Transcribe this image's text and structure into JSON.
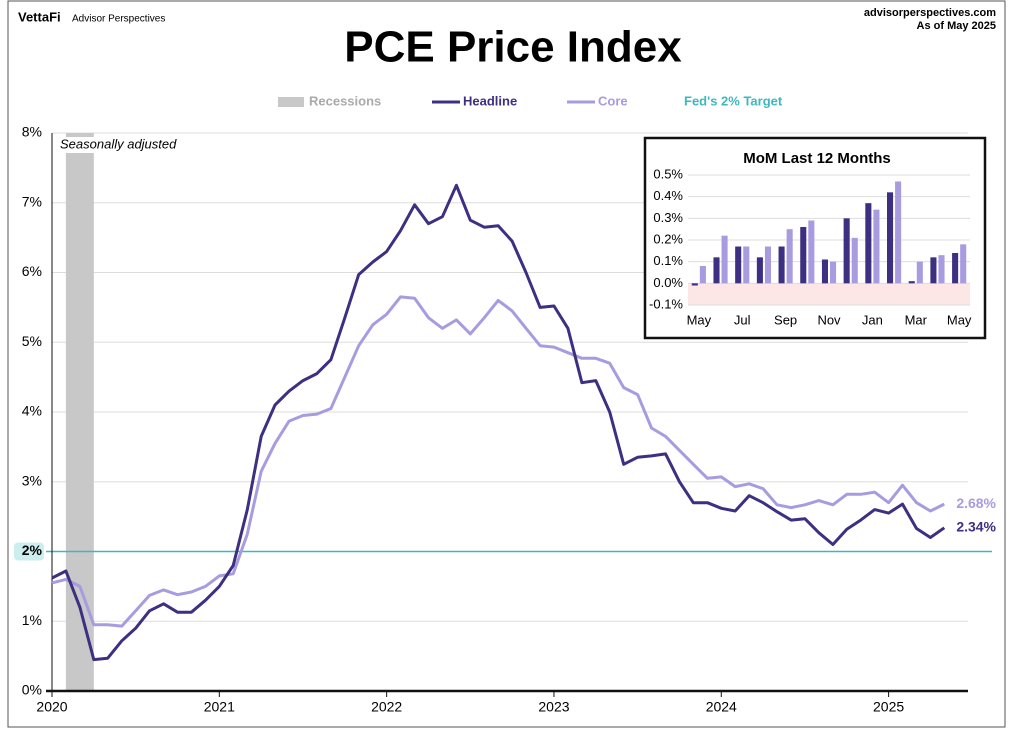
{
  "header": {
    "brand": "VettaFi",
    "brand_sub": "Advisor Perspectives",
    "site": "advisorperspectives.com",
    "as_of": "As of May 2025"
  },
  "chart_data": [
    {
      "type": "line",
      "title": "PCE Price Index",
      "annotation": "Seasonally adjusted",
      "recession": {
        "name": "Recessions",
        "color": "#c8c8c8",
        "periods": [
          [
            2020.083,
            2020.25
          ]
        ]
      },
      "target": {
        "name": "Fed's 2% Target",
        "value": 2,
        "color": "#3fb8bd"
      },
      "x": [
        2020,
        2020.083,
        2020.167,
        2020.25,
        2020.333,
        2020.417,
        2020.5,
        2020.583,
        2020.667,
        2020.75,
        2020.833,
        2020.917,
        2021,
        2021.083,
        2021.167,
        2021.25,
        2021.333,
        2021.417,
        2021.5,
        2021.583,
        2021.667,
        2021.75,
        2021.833,
        2021.917,
        2022,
        2022.083,
        2022.167,
        2022.25,
        2022.333,
        2022.417,
        2022.5,
        2022.583,
        2022.667,
        2022.75,
        2022.833,
        2022.917,
        2023,
        2023.083,
        2023.167,
        2023.25,
        2023.333,
        2023.417,
        2023.5,
        2023.583,
        2023.667,
        2023.75,
        2023.833,
        2023.917,
        2024,
        2024.083,
        2024.167,
        2024.25,
        2024.333,
        2024.417,
        2024.5,
        2024.583,
        2024.667,
        2024.75,
        2024.833,
        2024.917,
        2025,
        2025.083,
        2025.167,
        2025.25,
        2025.333
      ],
      "series": [
        {
          "name": "Headline",
          "color": "#3d2f82",
          "last_label": "2.34%",
          "values": [
            1.62,
            1.72,
            1.2,
            0.45,
            0.47,
            0.72,
            0.9,
            1.15,
            1.25,
            1.13,
            1.13,
            1.3,
            1.5,
            1.8,
            2.6,
            3.65,
            4.1,
            4.3,
            4.45,
            4.55,
            4.75,
            5.35,
            5.97,
            6.15,
            6.3,
            6.6,
            6.97,
            6.7,
            6.8,
            7.25,
            6.75,
            6.65,
            6.67,
            6.45,
            6.0,
            5.5,
            5.52,
            5.2,
            4.42,
            4.45,
            4.0,
            3.25,
            3.35,
            3.37,
            3.4,
            3.0,
            2.7,
            2.7,
            2.62,
            2.58,
            2.8,
            2.7,
            2.57,
            2.45,
            2.47,
            2.27,
            2.1,
            2.32,
            2.45,
            2.6,
            2.55,
            2.68,
            2.33,
            2.2,
            2.34
          ]
        },
        {
          "name": "Core",
          "color": "#a99be0",
          "last_label": "2.68%",
          "values": [
            1.55,
            1.6,
            1.5,
            0.95,
            0.95,
            0.93,
            1.15,
            1.37,
            1.45,
            1.38,
            1.42,
            1.5,
            1.65,
            1.68,
            2.25,
            3.15,
            3.55,
            3.87,
            3.95,
            3.97,
            4.05,
            4.5,
            4.95,
            5.25,
            5.4,
            5.65,
            5.63,
            5.35,
            5.2,
            5.32,
            5.12,
            5.35,
            5.6,
            5.45,
            5.2,
            4.95,
            4.93,
            4.85,
            4.77,
            4.77,
            4.7,
            4.35,
            4.25,
            3.77,
            3.65,
            3.45,
            3.25,
            3.05,
            3.07,
            2.93,
            2.97,
            2.9,
            2.67,
            2.63,
            2.67,
            2.73,
            2.67,
            2.82,
            2.82,
            2.85,
            2.7,
            2.95,
            2.7,
            2.58,
            2.68
          ]
        }
      ],
      "xlim": [
        2020,
        2025.6
      ],
      "xticks": [
        2020,
        2021,
        2022,
        2023,
        2024,
        2025
      ],
      "ylim": [
        0,
        8
      ],
      "yticks": [
        {
          "value": 0,
          "label": "0%"
        },
        {
          "value": 1,
          "label": "1%"
        },
        {
          "value": 2,
          "label": "2%"
        },
        {
          "value": 3,
          "label": "3%"
        },
        {
          "value": 4,
          "label": "4%"
        },
        {
          "value": 5,
          "label": "5%"
        },
        {
          "value": 6,
          "label": "6%"
        },
        {
          "value": 7,
          "label": "7%"
        },
        {
          "value": 8,
          "label": "8%"
        }
      ],
      "grid": true
    },
    {
      "type": "bar",
      "title": "MoM Last 12 Months",
      "categories": [
        "May",
        null,
        "Jul",
        null,
        "Sep",
        null,
        "Nov",
        null,
        "Jan",
        null,
        "Mar",
        null,
        "May"
      ],
      "series": [
        {
          "name": "Headline",
          "color": "#3d2f82",
          "values": [
            -0.01,
            0.12,
            0.17,
            0.12,
            0.17,
            0.26,
            0.11,
            0.3,
            0.37,
            0.42,
            0.01,
            0.12,
            0.14
          ]
        },
        {
          "name": "Core",
          "color": "#a99be0",
          "values": [
            0.08,
            0.22,
            0.17,
            0.17,
            0.25,
            0.29,
            0.1,
            0.21,
            0.34,
            0.47,
            0.1,
            0.13,
            0.18
          ]
        }
      ],
      "ylim": [
        -0.1,
        0.5
      ],
      "yticks": [
        {
          "value": -0.1,
          "label": "-0.1%"
        },
        {
          "value": 0,
          "label": "0.0%"
        },
        {
          "value": 0.1,
          "label": "0.1%"
        },
        {
          "value": 0.2,
          "label": "0.2%"
        },
        {
          "value": 0.3,
          "label": "0.3%"
        },
        {
          "value": 0.4,
          "label": "0.4%"
        },
        {
          "value": 0.5,
          "label": "0.5%"
        }
      ],
      "negative_shade": "#fde6e6",
      "grid": true
    }
  ]
}
